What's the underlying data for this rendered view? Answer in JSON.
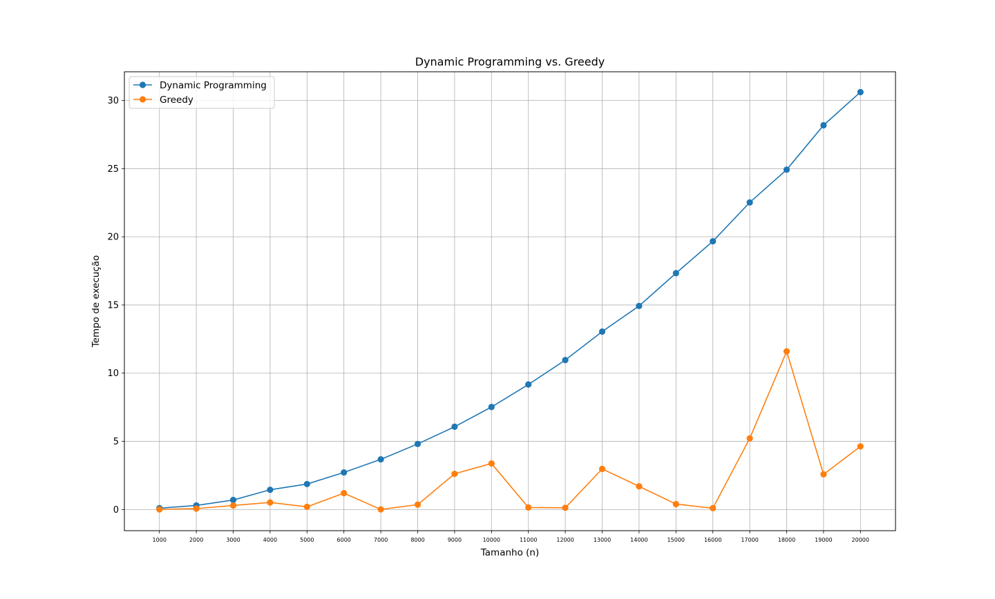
{
  "chart_data": {
    "type": "line",
    "title": "Dynamic Programming vs. Greedy",
    "xlabel": "Tamanho (n)",
    "ylabel": "Tempo de execução",
    "x": [
      1000,
      2000,
      3000,
      4000,
      5000,
      6000,
      7000,
      8000,
      9000,
      10000,
      11000,
      12000,
      13000,
      14000,
      15000,
      16000,
      17000,
      18000,
      19000,
      20000
    ],
    "xtick_labels": [
      "1000",
      "2000",
      "3000",
      "4000",
      "5000",
      "6000",
      "7000",
      "8000",
      "9000",
      "10000",
      "11000",
      "12000",
      "13000",
      "14000",
      "15000",
      "16000",
      "17000",
      "18000",
      "19000",
      "20000"
    ],
    "yticks": [
      0,
      5,
      10,
      15,
      20,
      25,
      30
    ],
    "ytick_labels": [
      "0",
      "5",
      "10",
      "15",
      "20",
      "25",
      "30"
    ],
    "ylim": [
      -1.55,
      32.1
    ],
    "xlim": [
      50,
      20950
    ],
    "grid": true,
    "legend_position": "top-left",
    "series": [
      {
        "name": "Dynamic Programming",
        "color": "#1f77b4",
        "values": [
          0.1,
          0.3,
          0.7,
          1.45,
          1.87,
          2.72,
          3.68,
          4.81,
          6.07,
          7.52,
          9.17,
          10.96,
          13.05,
          14.93,
          17.33,
          19.67,
          22.52,
          24.92,
          28.18,
          30.61
        ]
      },
      {
        "name": "Greedy",
        "color": "#ff7f0e",
        "values": [
          0.01,
          0.07,
          0.3,
          0.52,
          0.2,
          1.2,
          0.01,
          0.36,
          2.62,
          3.38,
          0.15,
          0.13,
          2.98,
          1.7,
          0.4,
          0.1,
          5.22,
          11.6,
          2.58,
          4.63
        ]
      }
    ]
  }
}
